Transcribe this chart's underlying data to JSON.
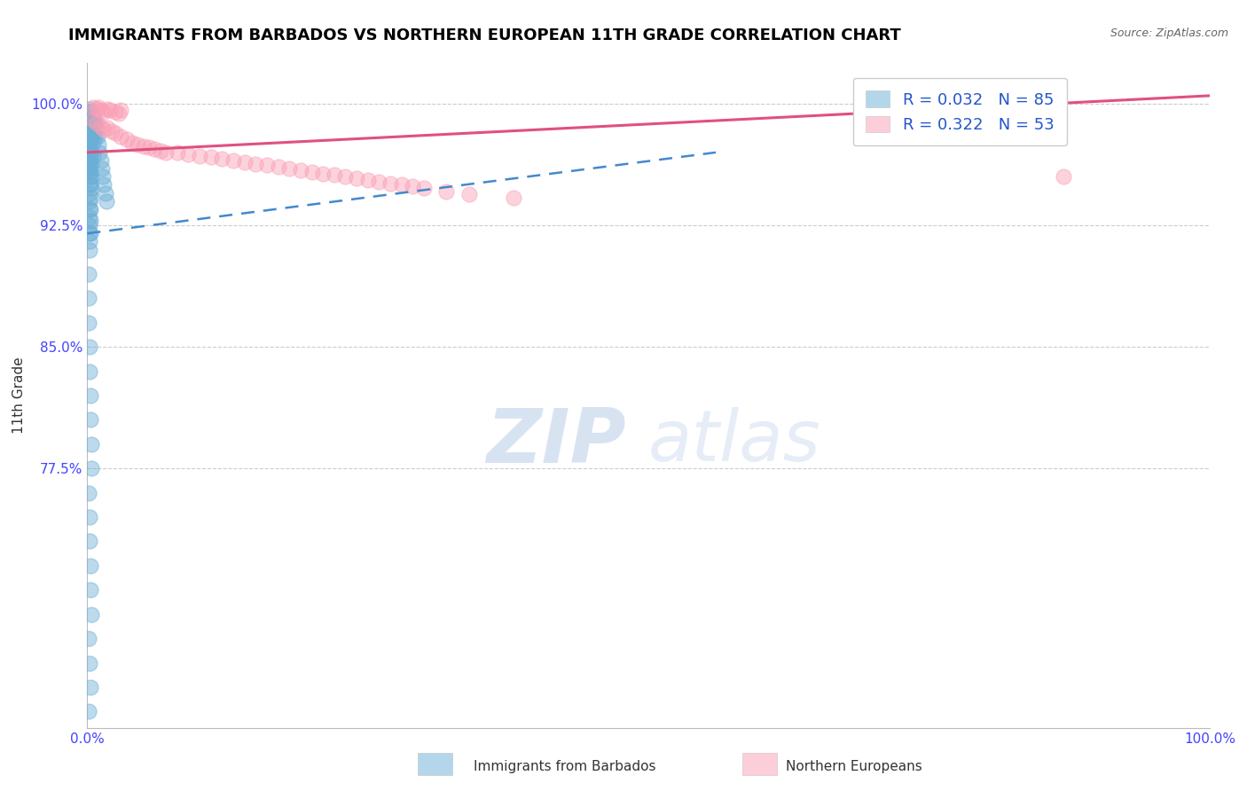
{
  "title": "IMMIGRANTS FROM BARBADOS VS NORTHERN EUROPEAN 11TH GRADE CORRELATION CHART",
  "source": "Source: ZipAtlas.com",
  "ylabel": "11th Grade",
  "xlim": [
    0.0,
    1.0
  ],
  "ylim": [
    0.615,
    1.025
  ],
  "yticks": [
    0.775,
    0.85,
    0.925,
    1.0
  ],
  "ytick_labels": [
    "77.5%",
    "85.0%",
    "92.5%",
    "100.0%"
  ],
  "xtick_labels": [
    "0.0%",
    "100.0%"
  ],
  "barbados_R": 0.032,
  "barbados_N": 85,
  "northern_R": 0.322,
  "northern_N": 53,
  "barbados_color": "#6baed6",
  "northern_color": "#fa9fb5",
  "barbados_line_color": "#4488cc",
  "northern_line_color": "#e05080",
  "legend_label_1": "Immigrants from Barbados",
  "legend_label_2": "Northern Europeans",
  "watermark_zip": "ZIP",
  "watermark_atlas": "atlas",
  "background_color": "#ffffff",
  "grid_color": "#cccccc",
  "title_color": "#000000",
  "tick_color": "#4444ff",
  "barbados_x": [
    0.001,
    0.001,
    0.001,
    0.001,
    0.001,
    0.001,
    0.001,
    0.001,
    0.001,
    0.001,
    0.002,
    0.002,
    0.002,
    0.002,
    0.002,
    0.002,
    0.002,
    0.002,
    0.002,
    0.002,
    0.002,
    0.002,
    0.002,
    0.002,
    0.002,
    0.002,
    0.002,
    0.002,
    0.002,
    0.003,
    0.003,
    0.003,
    0.003,
    0.003,
    0.003,
    0.003,
    0.003,
    0.003,
    0.003,
    0.003,
    0.003,
    0.004,
    0.004,
    0.004,
    0.004,
    0.004,
    0.004,
    0.004,
    0.005,
    0.005,
    0.005,
    0.005,
    0.006,
    0.006,
    0.007,
    0.007,
    0.008,
    0.009,
    0.01,
    0.011,
    0.012,
    0.013,
    0.014,
    0.015,
    0.016,
    0.017,
    0.001,
    0.001,
    0.001,
    0.002,
    0.002,
    0.003,
    0.003,
    0.004,
    0.004,
    0.001,
    0.002,
    0.002,
    0.003,
    0.003,
    0.004,
    0.001,
    0.002,
    0.003,
    0.001
  ],
  "barbados_y": [
    0.995,
    0.99,
    0.985,
    0.98,
    0.975,
    0.97,
    0.968,
    0.965,
    0.96,
    0.958,
    0.997,
    0.992,
    0.988,
    0.985,
    0.98,
    0.975,
    0.97,
    0.965,
    0.96,
    0.955,
    0.95,
    0.945,
    0.94,
    0.935,
    0.93,
    0.925,
    0.92,
    0.915,
    0.91,
    0.995,
    0.99,
    0.985,
    0.978,
    0.972,
    0.965,
    0.958,
    0.95,
    0.942,
    0.935,
    0.928,
    0.92,
    0.993,
    0.985,
    0.978,
    0.97,
    0.962,
    0.955,
    0.948,
    0.992,
    0.984,
    0.976,
    0.968,
    0.99,
    0.982,
    0.988,
    0.98,
    0.985,
    0.98,
    0.975,
    0.97,
    0.965,
    0.96,
    0.955,
    0.95,
    0.945,
    0.94,
    0.895,
    0.88,
    0.865,
    0.85,
    0.835,
    0.82,
    0.805,
    0.79,
    0.775,
    0.76,
    0.745,
    0.73,
    0.715,
    0.7,
    0.685,
    0.67,
    0.655,
    0.64,
    0.625
  ],
  "northern_x": [
    0.005,
    0.008,
    0.01,
    0.012,
    0.015,
    0.018,
    0.02,
    0.025,
    0.028,
    0.03,
    0.005,
    0.008,
    0.012,
    0.015,
    0.018,
    0.022,
    0.025,
    0.03,
    0.035,
    0.04,
    0.045,
    0.05,
    0.055,
    0.06,
    0.065,
    0.07,
    0.08,
    0.09,
    0.1,
    0.11,
    0.12,
    0.13,
    0.14,
    0.15,
    0.16,
    0.17,
    0.18,
    0.19,
    0.2,
    0.21,
    0.22,
    0.23,
    0.24,
    0.25,
    0.26,
    0.27,
    0.28,
    0.29,
    0.3,
    0.32,
    0.34,
    0.87,
    0.38
  ],
  "northern_y": [
    0.998,
    0.997,
    0.998,
    0.996,
    0.995,
    0.997,
    0.996,
    0.995,
    0.994,
    0.996,
    0.99,
    0.988,
    0.986,
    0.984,
    0.985,
    0.983,
    0.982,
    0.98,
    0.978,
    0.976,
    0.975,
    0.974,
    0.973,
    0.972,
    0.971,
    0.97,
    0.97,
    0.969,
    0.968,
    0.967,
    0.966,
    0.965,
    0.964,
    0.963,
    0.962,
    0.961,
    0.96,
    0.959,
    0.958,
    0.957,
    0.956,
    0.955,
    0.954,
    0.953,
    0.952,
    0.951,
    0.95,
    0.949,
    0.948,
    0.946,
    0.944,
    0.955,
    0.942
  ],
  "northern_line_x_start": 0.0,
  "northern_line_x_end": 1.0,
  "northern_line_y_start": 0.97,
  "northern_line_y_end": 1.005,
  "barbados_line_x_start": 0.0,
  "barbados_line_x_end": 0.56,
  "barbados_line_y_start": 0.92,
  "barbados_line_y_end": 0.97
}
